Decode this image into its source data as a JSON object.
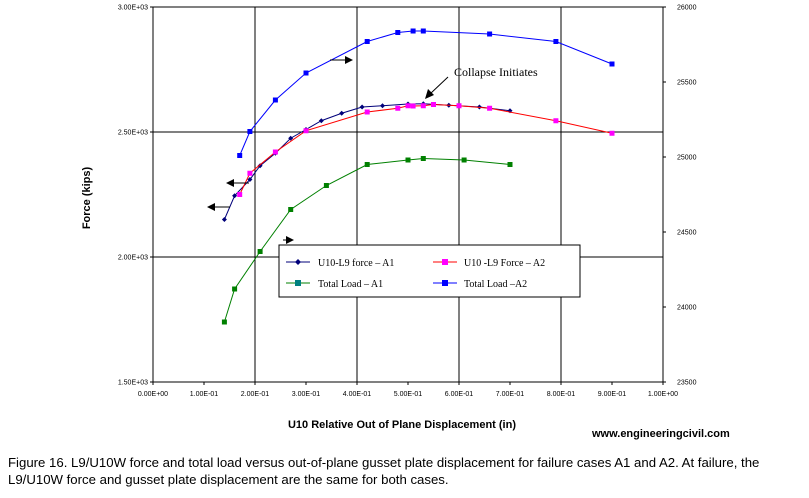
{
  "chart_data": {
    "type": "line",
    "xlabel": "U10 Relative Out of Plane Displacement (in)",
    "ylabel": "Force (kips)",
    "xlim": [
      0,
      1.0
    ],
    "ylim": [
      1500,
      3000
    ],
    "y2lim": [
      23500,
      26000
    ],
    "xticks": [
      "0.00E+00",
      "1.00E-01",
      "2.00E-01",
      "3.00E-01",
      "4.00E-01",
      "5.00E-01",
      "6.00E-01",
      "7.00E-01",
      "8.00E-01",
      "9.00E-01",
      "1.00E+00"
    ],
    "yticks": [
      "1.50E+03",
      "2.00E+03",
      "2.50E+03",
      "3.00E+03"
    ],
    "y2ticks": [
      "23500",
      "24000",
      "24500",
      "25000",
      "25500",
      "26000"
    ],
    "grid": true,
    "legend_position": "center",
    "series": [
      {
        "name": "U10-L9 force  – A1",
        "axis": "left",
        "color": "#00007a",
        "marker": "diamond",
        "x": [
          0.14,
          0.16,
          0.19,
          0.21,
          0.24,
          0.27,
          0.3,
          0.33,
          0.37,
          0.41,
          0.45,
          0.5,
          0.53,
          0.58,
          0.64,
          0.7
        ],
        "y": [
          2150,
          2245,
          2310,
          2365,
          2415,
          2475,
          2510,
          2545,
          2575,
          2600,
          2605,
          2612,
          2613,
          2607,
          2600,
          2585
        ]
      },
      {
        "name": "U10 -L9 Force  – A2",
        "axis": "left",
        "color": "#ff00ff",
        "line_color": "#ff0000",
        "marker": "square",
        "x": [
          0.17,
          0.19,
          0.24,
          0.3,
          0.42,
          0.48,
          0.5,
          0.51,
          0.53,
          0.55,
          0.6,
          0.66,
          0.79,
          0.9
        ],
        "y": [
          2250,
          2335,
          2420,
          2505,
          2580,
          2595,
          2605,
          2604,
          2605,
          2610,
          2605,
          2595,
          2545,
          2495
        ]
      },
      {
        "name": "Total Load  – A1",
        "axis": "right",
        "color": "#008000",
        "marker": "square",
        "x": [
          0.14,
          0.16,
          0.21,
          0.27,
          0.34,
          0.42,
          0.5,
          0.53,
          0.61,
          0.7
        ],
        "y": [
          23900,
          24120,
          24370,
          24650,
          24810,
          24950,
          24980,
          24990,
          24980,
          24950
        ]
      },
      {
        "name": "Total Load  –A2",
        "axis": "right",
        "color": "#0000ff",
        "marker": "square",
        "x": [
          0.17,
          0.19,
          0.24,
          0.3,
          0.42,
          0.48,
          0.51,
          0.53,
          0.66,
          0.79,
          0.9
        ],
        "y": [
          25010,
          25170,
          25380,
          25560,
          25770,
          25830,
          25840,
          25840,
          25820,
          25770,
          25620
        ]
      }
    ],
    "annotations": [
      "Collapse Initiates"
    ]
  },
  "watermark": "www.engineeringcivil.com",
  "caption": "Figure 16.  L9/U10W force and total load versus out-of-plane gusset plate displacement for failure cases A1 and A2.  At failure, the L9/U10W force and gusset plate displacement are the same for both cases."
}
